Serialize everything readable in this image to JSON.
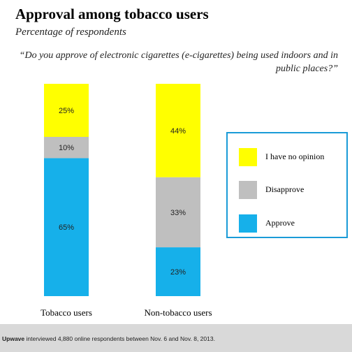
{
  "colors": {
    "approve": "#16b0ea",
    "disapprove": "#bfbfbf",
    "no_opinion": "#ffff00",
    "legend_border": "#1a9bd7",
    "footer_bg": "#d9d9d9"
  },
  "footer": {
    "brand": "Upwave",
    "text": " interviewed 4,880 online respondents between Nov. 6 and Nov. 8, 2013."
  },
  "chart_data": {
    "type": "bar",
    "stacked": true,
    "title": "Approval among tobacco users",
    "subtitle": "Percentage of respondents",
    "question": "“Do you approve of electronic cigarettes (e-cigarettes) being used indoors and in public places?”",
    "categories": [
      "Tobacco users",
      "Non-tobacco users"
    ],
    "series": [
      {
        "name": "Approve",
        "color": "#16b0ea",
        "values": [
          65,
          23
        ],
        "labels": [
          "65%",
          "23%"
        ]
      },
      {
        "name": "Disapprove",
        "color": "#bfbfbf",
        "values": [
          10,
          33
        ],
        "labels": [
          "10%",
          "33%"
        ]
      },
      {
        "name": "I have no opinion",
        "color": "#ffff00",
        "values": [
          25,
          44
        ],
        "labels": [
          "25%",
          "44%"
        ]
      }
    ],
    "legend_order": [
      "I have no opinion",
      "Disapprove",
      "Approve"
    ],
    "legend_placement": "right",
    "ylim": [
      0,
      100
    ],
    "grid": false
  }
}
